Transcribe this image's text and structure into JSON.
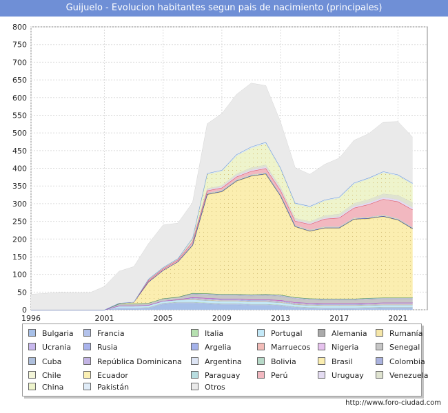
{
  "page": {
    "title": "Guijuelo - Evolucion habitantes segun pais de nacimiento (principales)",
    "footer": "http://www.foro-ciudad.com"
  },
  "chart_data": {
    "type": "area",
    "stacked": true,
    "x": [
      1996,
      1998,
      1999,
      2000,
      2001,
      2002,
      2003,
      2004,
      2005,
      2006,
      2007,
      2008,
      2009,
      2010,
      2011,
      2012,
      2013,
      2014,
      2015,
      2016,
      2017,
      2018,
      2019,
      2020,
      2021,
      2022
    ],
    "xticks": [
      1996,
      2001,
      2005,
      2009,
      2013,
      2017,
      2021
    ],
    "yticks": [
      0,
      50,
      100,
      150,
      200,
      250,
      300,
      350,
      400,
      450,
      500,
      550,
      600,
      650,
      700,
      750,
      800
    ],
    "xlim": [
      1996,
      2023
    ],
    "ylim": [
      0,
      800
    ],
    "grid": true,
    "legend_position": "bottom",
    "series": [
      {
        "name": "Bulgaria",
        "color": "#a7c0e8",
        "values": [
          0,
          0,
          0,
          0,
          0,
          2,
          2,
          3,
          15,
          18,
          18,
          16,
          14,
          14,
          12,
          12,
          10,
          5,
          3,
          2,
          2,
          2,
          3,
          4,
          4,
          4
        ]
      },
      {
        "name": "Francia",
        "color": "#b3c2eb",
        "values": [
          0,
          0,
          0,
          0,
          0,
          3,
          3,
          3,
          3,
          3,
          3,
          3,
          3,
          3,
          3,
          3,
          3,
          3,
          3,
          3,
          3,
          3,
          3,
          3,
          3,
          3
        ]
      },
      {
        "name": "Italia",
        "color": "#b6e0b0",
        "values": [
          0,
          0,
          0,
          0,
          0,
          0,
          0,
          1,
          1,
          1,
          1,
          1,
          1,
          1,
          1,
          1,
          1,
          1,
          1,
          1,
          1,
          1,
          1,
          1,
          1,
          1
        ]
      },
      {
        "name": "Portugal",
        "color": "#c4e9f8",
        "values": [
          0,
          0,
          0,
          0,
          0,
          5,
          5,
          5,
          5,
          5,
          6,
          6,
          6,
          6,
          6,
          6,
          6,
          5,
          5,
          5,
          5,
          5,
          5,
          5,
          5,
          5
        ]
      },
      {
        "name": "Alemania",
        "color": "#aaaaaa",
        "values": [
          0,
          0,
          0,
          0,
          0,
          0,
          0,
          0,
          0,
          1,
          1,
          1,
          1,
          1,
          1,
          1,
          1,
          1,
          1,
          1,
          1,
          1,
          1,
          1,
          1,
          1
        ]
      },
      {
        "name": "Rumanía",
        "color": "#f5e6a8",
        "values": [
          0,
          0,
          0,
          0,
          0,
          1,
          1,
          1,
          1,
          1,
          1,
          1,
          1,
          1,
          1,
          1,
          1,
          1,
          1,
          1,
          1,
          1,
          1,
          1,
          1,
          1
        ]
      },
      {
        "name": "Ucrania",
        "color": "#c8b8ee",
        "values": [
          0,
          0,
          0,
          0,
          0,
          0,
          0,
          0,
          0,
          0,
          1,
          1,
          1,
          1,
          1,
          1,
          1,
          1,
          1,
          1,
          1,
          1,
          1,
          1,
          1,
          1
        ]
      },
      {
        "name": "Rusia",
        "color": "#a9b3ec",
        "values": [
          0,
          0,
          0,
          0,
          0,
          0,
          0,
          0,
          0,
          0,
          1,
          1,
          1,
          1,
          1,
          1,
          1,
          1,
          1,
          1,
          1,
          1,
          1,
          1,
          1,
          1
        ]
      },
      {
        "name": "Argelia",
        "color": "#a4b2ea",
        "values": [
          0,
          0,
          0,
          0,
          0,
          0,
          0,
          0,
          0,
          0,
          1,
          1,
          1,
          1,
          1,
          1,
          1,
          1,
          1,
          1,
          1,
          1,
          1,
          1,
          1,
          1
        ]
      },
      {
        "name": "Marruecos",
        "color": "#f2bcb8",
        "values": [
          0,
          0,
          0,
          0,
          0,
          0,
          0,
          0,
          0,
          0,
          1,
          1,
          1,
          1,
          1,
          1,
          1,
          1,
          1,
          1,
          1,
          1,
          1,
          1,
          1,
          1
        ]
      },
      {
        "name": "Nigeria",
        "color": "#e6c2ee",
        "values": [
          0,
          0,
          0,
          0,
          0,
          0,
          0,
          0,
          0,
          0,
          1,
          1,
          1,
          1,
          1,
          1,
          1,
          1,
          1,
          1,
          1,
          1,
          1,
          1,
          1,
          1
        ]
      },
      {
        "name": "Senegal",
        "color": "#c6c6c6",
        "values": [
          0,
          0,
          0,
          0,
          0,
          6,
          6,
          6,
          7,
          7,
          8,
          9,
          9,
          9,
          10,
          11,
          11,
          10,
          9,
          9,
          9,
          9,
          10,
          10,
          10,
          10
        ]
      },
      {
        "name": "Cuba",
        "color": "#aebfdc",
        "values": [
          0,
          0,
          0,
          0,
          0,
          0,
          0,
          0,
          0,
          0,
          1,
          1,
          1,
          1,
          1,
          1,
          1,
          1,
          1,
          1,
          1,
          1,
          1,
          1,
          1,
          1
        ]
      },
      {
        "name": "República Dominicana",
        "color": "#c3b4e4",
        "values": [
          0,
          0,
          0,
          0,
          0,
          0,
          0,
          0,
          0,
          0,
          1,
          1,
          1,
          1,
          1,
          1,
          1,
          1,
          1,
          1,
          1,
          1,
          1,
          1,
          1,
          1
        ]
      },
      {
        "name": "Argentina",
        "color": "#dde4f4",
        "values": [
          0,
          0,
          0,
          0,
          0,
          0,
          0,
          0,
          0,
          0,
          1,
          1,
          1,
          1,
          1,
          1,
          1,
          1,
          1,
          1,
          1,
          1,
          1,
          1,
          1,
          1
        ]
      },
      {
        "name": "Bolivia",
        "color": "#b7d9c8",
        "values": [
          0,
          0,
          0,
          0,
          0,
          0,
          0,
          0,
          0,
          0,
          1,
          1,
          1,
          1,
          1,
          1,
          1,
          1,
          1,
          1,
          1,
          1,
          1,
          1,
          1,
          1
        ]
      },
      {
        "name": "Brasil",
        "color": "#fbeeb0",
        "values": [
          0,
          0,
          0,
          0,
          0,
          2,
          5,
          60,
          80,
          100,
          135,
          280,
          290,
          320,
          335,
          340,
          280,
          200,
          190,
          200,
          200,
          225,
          225,
          230,
          220,
          195
        ]
      },
      {
        "name": "Colombia",
        "color": "#aab2de",
        "values": [
          0,
          0,
          0,
          0,
          0,
          0,
          0,
          0,
          0,
          0,
          1,
          1,
          1,
          1,
          1,
          1,
          1,
          1,
          1,
          1,
          1,
          1,
          1,
          1,
          1,
          1
        ]
      },
      {
        "name": "Chile",
        "color": "#f3f5d8",
        "values": [
          0,
          0,
          0,
          0,
          0,
          0,
          0,
          0,
          0,
          0,
          1,
          1,
          1,
          1,
          1,
          1,
          1,
          1,
          1,
          1,
          1,
          1,
          1,
          1,
          1,
          1
        ]
      },
      {
        "name": "Ecuador",
        "color": "#fbf0b4",
        "values": [
          0,
          0,
          0,
          0,
          0,
          0,
          0,
          0,
          0,
          0,
          1,
          1,
          1,
          1,
          1,
          1,
          1,
          1,
          1,
          1,
          1,
          1,
          1,
          1,
          1,
          1
        ]
      },
      {
        "name": "Paraguay",
        "color": "#b8dde0",
        "values": [
          0,
          0,
          0,
          0,
          0,
          0,
          0,
          0,
          0,
          0,
          1,
          1,
          1,
          1,
          1,
          1,
          1,
          1,
          1,
          1,
          1,
          1,
          1,
          1,
          1,
          1
        ]
      },
      {
        "name": "Perú",
        "color": "#f2b8c0",
        "values": [
          0,
          0,
          0,
          0,
          0,
          0,
          0,
          4,
          4,
          5,
          6,
          7,
          7,
          8,
          10,
          12,
          12,
          12,
          16,
          22,
          25,
          28,
          36,
          45,
          48,
          50
        ]
      },
      {
        "name": "Uruguay",
        "color": "#e4dcf2",
        "values": [
          0,
          0,
          0,
          0,
          0,
          0,
          0,
          1,
          1,
          1,
          2,
          3,
          3,
          4,
          4,
          4,
          4,
          3,
          3,
          3,
          4,
          5,
          5,
          5,
          6,
          6
        ]
      },
      {
        "name": "Venezuela",
        "color": "#dfe3d0",
        "values": [
          0,
          0,
          0,
          0,
          0,
          0,
          0,
          1,
          1,
          1,
          2,
          3,
          4,
          5,
          6,
          6,
          6,
          5,
          5,
          6,
          7,
          8,
          9,
          10,
          12,
          14
        ]
      },
      {
        "name": "China",
        "color": "#eef4cc",
        "values": [
          0,
          0,
          0,
          0,
          0,
          0,
          0,
          1,
          1,
          1,
          5,
          40,
          40,
          50,
          55,
          60,
          50,
          40,
          40,
          42,
          45,
          55,
          58,
          60,
          55,
          52
        ]
      },
      {
        "name": "Pakistán",
        "color": "#e0ecf8",
        "values": [
          0,
          0,
          0,
          0,
          0,
          0,
          0,
          1,
          1,
          1,
          2,
          3,
          3,
          4,
          4,
          4,
          4,
          3,
          3,
          3,
          3,
          3,
          3,
          3,
          3,
          3
        ]
      },
      {
        "name": "Otros",
        "color": "#eaeaea",
        "values": [
          44,
          49,
          48,
          48,
          66,
          90,
          100,
          100,
          120,
          100,
          100,
          140,
          160,
          170,
          180,
          160,
          130,
          100,
          90,
          100,
          110,
          120,
          125,
          140,
          150,
          130
        ]
      }
    ]
  }
}
